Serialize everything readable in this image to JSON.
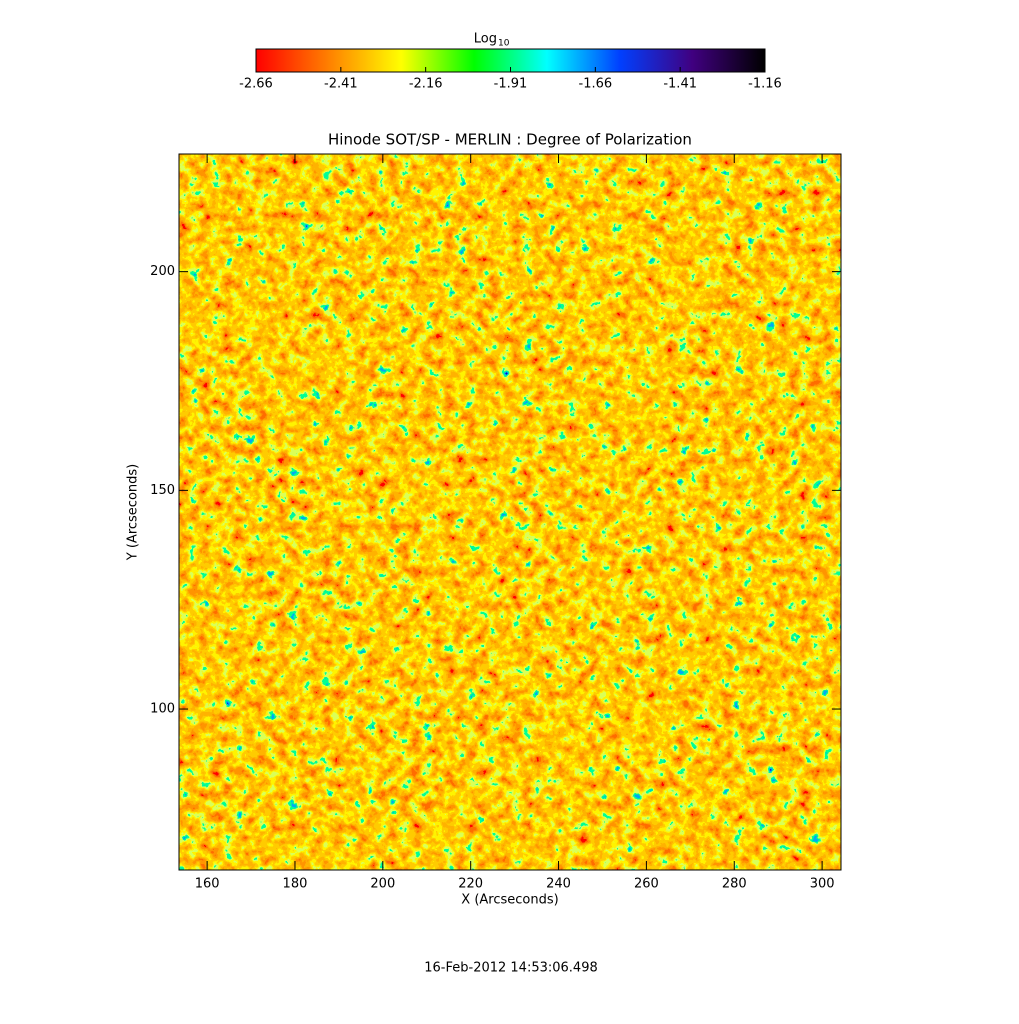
{
  "chart_data": {
    "type": "heatmap",
    "title": "Hinode SOT/SP - MERLIN : Degree of Polarization",
    "x_label": "X (Arcseconds)",
    "y_label": "Y (Arcseconds)",
    "xlim": [
      153.6,
      304.3
    ],
    "ylim": [
      63.2,
      226.9
    ],
    "xticks": [
      160,
      180,
      200,
      220,
      240,
      260,
      280,
      300
    ],
    "yticks": [
      100,
      150,
      200
    ],
    "colorbar": {
      "label": "Log",
      "label_subscript": "10",
      "lim": [
        -2.66,
        -1.16
      ],
      "ticks": [
        -2.66,
        -2.41,
        -2.16,
        -1.91,
        -1.66,
        -1.41,
        -1.16
      ],
      "colormap": [
        "#ff0000",
        "#ff8000",
        "#ffff00",
        "#00ff00",
        "#00ffff",
        "#0040ff",
        "#400080",
        "#000000"
      ]
    },
    "timestamp": "16-Feb-2012 14:53:06.498"
  }
}
